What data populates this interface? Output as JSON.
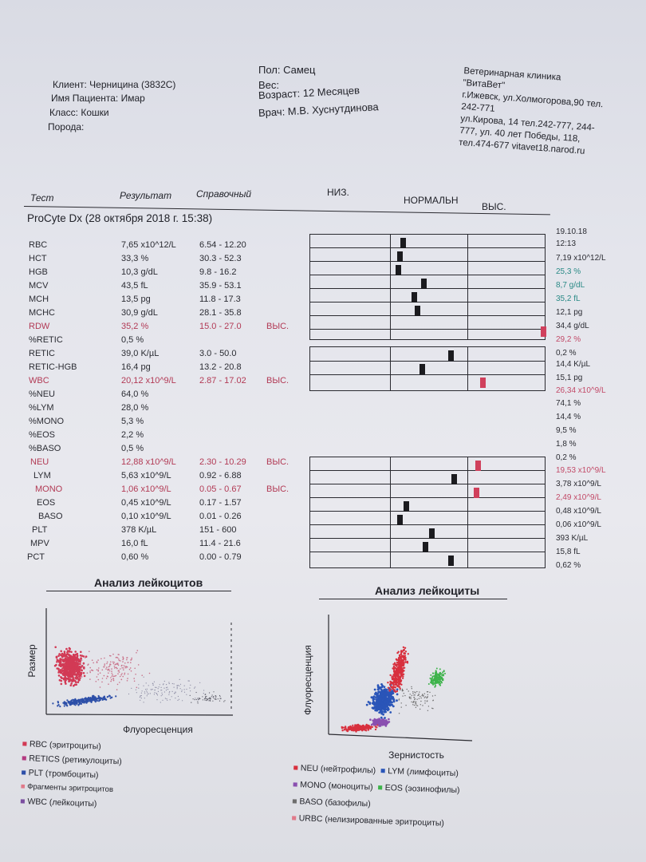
{
  "header": {
    "client_label": "Клиент: Черницина (3832C)",
    "patient_label": "Имя Пациента: Имар",
    "class_label": "Класс: Кошки",
    "breed_label": "Порода:",
    "sex_label": "Пол: Самец",
    "weight_label": "Вес:",
    "age_label": "Возраст: 12 Месяцев",
    "doctor_label": "Врач: М.В. Хуснутдинова",
    "clinic_lines": [
      "Ветеринарная клиника",
      "\"ВитаВет\"",
      "г.Ижевск, ул.Холмогорова,90 тел.",
      "242-771",
      "ул.Кирова, 14 тел.242-777, 244-",
      "777, ул. 40 лет Победы, 118,",
      "тел.474-677 vitavet18.narod.ru"
    ]
  },
  "table": {
    "col_test": "Тест",
    "col_result": "Результат",
    "col_reference": "Справочный",
    "col_low": "НИЗ.",
    "col_normal": "НОРМАЛЬН",
    "col_high": "ВЫС.",
    "run_title": "ProCyte Dx (28 октября 2018 г. 15:38)",
    "prev_date": "19.10.18",
    "prev_time": "12:13",
    "rows": [
      {
        "name": "RBC",
        "result": "7,65 x10^12/L",
        "ref": "6.54 - 12.20",
        "flag": "",
        "prev": "7,19 x10^12/L"
      },
      {
        "name": "HCT",
        "result": "33,3 %",
        "ref": "30.3 - 52.3",
        "flag": "",
        "prev": "25,3 %"
      },
      {
        "name": "HGB",
        "result": "10,3 g/dL",
        "ref": "9.8 - 16.2",
        "flag": "",
        "prev": "8,7 g/dL"
      },
      {
        "name": "MCV",
        "result": "43,5 fL",
        "ref": "35.9 - 53.1",
        "flag": "",
        "prev": "35,2 fL"
      },
      {
        "name": "MCH",
        "result": "13,5 pg",
        "ref": "11.8 - 17.3",
        "flag": "",
        "prev": "12,1 pg"
      },
      {
        "name": "MCHC",
        "result": "30,9 g/dL",
        "ref": "28.1 - 35.8",
        "flag": "",
        "prev": "34,4 g/dL"
      },
      {
        "name": "RDW",
        "result": "35,2 %",
        "ref": "15.0 - 27.0",
        "flag": "ВЫС.",
        "prev": "29,2 %"
      },
      {
        "name": "%RETIC",
        "result": "0,5 %",
        "ref": "",
        "flag": "",
        "prev": "0,2 %"
      },
      {
        "name": "RETIC",
        "result": "39,0 K/µL",
        "ref": "3.0 - 50.0",
        "flag": "",
        "prev": "14,4 K/µL"
      },
      {
        "name": "RETIC-HGB",
        "result": "16,4 pg",
        "ref": "13.2 - 20.8",
        "flag": "",
        "prev": "15,1 pg"
      },
      {
        "name": "WBC",
        "result": "20,12 x10^9/L",
        "ref": "2.87 - 17.02",
        "flag": "ВЫС.",
        "prev": "26,34 x10^9/L"
      },
      {
        "name": "%NEU",
        "result": "64,0 %",
        "ref": "",
        "flag": "",
        "prev": "74,1 %"
      },
      {
        "name": "%LYM",
        "result": "28,0 %",
        "ref": "",
        "flag": "",
        "prev": "14,4 %"
      },
      {
        "name": "%MONO",
        "result": "5,3 %",
        "ref": "",
        "flag": "",
        "prev": "9,5 %"
      },
      {
        "name": "%EOS",
        "result": "2,2 %",
        "ref": "",
        "flag": "",
        "prev": "1,8 %"
      },
      {
        "name": "%BASO",
        "result": "0,5 %",
        "ref": "",
        "flag": "",
        "prev": "0,2 %"
      },
      {
        "name": "NEU",
        "result": "12,88 x10^9/L",
        "ref": "2.30 - 10.29",
        "flag": "ВЫС.",
        "prev": "19,53 x10^9/L"
      },
      {
        "name": "LYM",
        "result": "5,63 x10^9/L",
        "ref": "0.92 - 6.88",
        "flag": "",
        "prev": "3,78 x10^9/L"
      },
      {
        "name": "MONO",
        "result": "1,06 x10^9/L",
        "ref": "0.05 - 0.67",
        "flag": "ВЫС.",
        "prev": "2,49 x10^9/L"
      },
      {
        "name": "EOS",
        "result": "0,45 x10^9/L",
        "ref": "0.17 - 1.57",
        "flag": "",
        "prev": "0,48 x10^9/L"
      },
      {
        "name": "BASO",
        "result": "0,10 x10^9/L",
        "ref": "0.01 - 0.26",
        "flag": "",
        "prev": "0,06 x10^9/L"
      },
      {
        "name": "PLT",
        "result": "378 K/µL",
        "ref": "151 - 600",
        "flag": "",
        "prev": "393 K/µL"
      },
      {
        "name": "MPV",
        "result": "16,0 fL",
        "ref": "11.4 - 21.6",
        "flag": "",
        "prev": "15,8 fL"
      },
      {
        "name": "PCT",
        "result": "0,60 %",
        "ref": "0.00 - 0.79",
        "flag": "",
        "prev": "0,62 %"
      }
    ]
  },
  "plots": {
    "left_title": "Анализ лейкоцитов",
    "left_ylabel": "Размер",
    "left_xlabel": "Флуоресценция",
    "left_legend": [
      "RBC (эритроциты)",
      "RETICS (ретикулоциты)",
      "PLT (тромбоциты)",
      "Фрагменты эритроцитов",
      "WBC (лейкоциты)"
    ],
    "right_title": "Анализ лейкоциты",
    "right_ylabel": "Флуоресценция",
    "right_xlabel": "Зернистость",
    "right_legend": [
      "NEU (нейтрофилы)",
      "LYM (лимфоциты)",
      "MONO (моноциты)",
      "EOS (эозинофилы)",
      "BASO (базофилы)",
      "URBC (нелизированные эритроциты)"
    ]
  },
  "colors": {
    "high_flag": "#b23a55",
    "marker": "#1b1b1f",
    "marker_high": "#d0405c",
    "rbc": "#d23a55",
    "retic": "#2d4fa8",
    "wbc": "#7b4fa0",
    "neu": "#d8303e",
    "lym": "#2a55b8",
    "mono": "#8a4fb0",
    "eos": "#3db34a",
    "baso": "#6d6d6d",
    "urbc": "#e07a8a"
  }
}
